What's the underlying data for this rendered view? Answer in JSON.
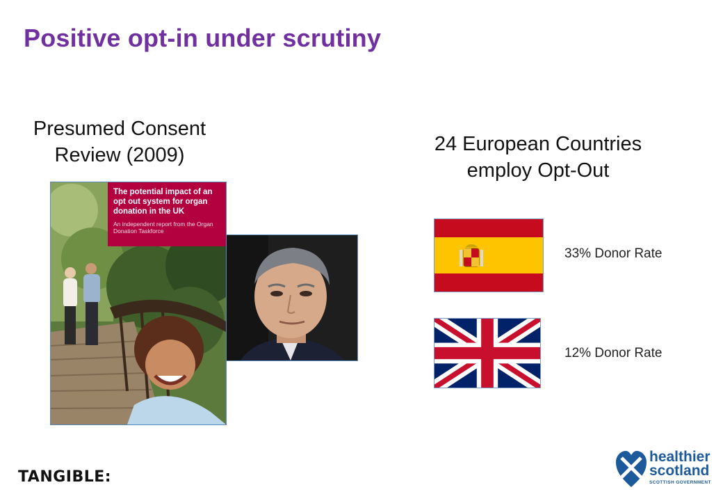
{
  "slide": {
    "title": "Positive opt-in under scrutiny",
    "left_heading_line1": "Presumed Consent",
    "left_heading_line2": "Review (2009)",
    "right_heading_line1": "24 European Countries",
    "right_heading_line2": "employ Opt-Out"
  },
  "report_cover": {
    "title": "The potential impact of an opt out system for organ donation in the UK",
    "subtitle": "An independent report from the Organ Donation Taskforce",
    "accent_color": "#b3003f"
  },
  "flags": [
    {
      "country": "Spain",
      "icon": "spain-flag-icon",
      "rate_label": "33% Donor Rate"
    },
    {
      "country": "United Kingdom",
      "icon": "union-jack-icon",
      "rate_label": "12% Donor Rate"
    }
  ],
  "footer": {
    "left_logo": "TANGIBLE:",
    "right_logo_line1": "healthier",
    "right_logo_line2": "scotland",
    "right_logo_line3": "SCOTTISH GOVERNMENT"
  },
  "colors": {
    "title": "#7030a0",
    "logo_blue": "#1d5a9c"
  }
}
